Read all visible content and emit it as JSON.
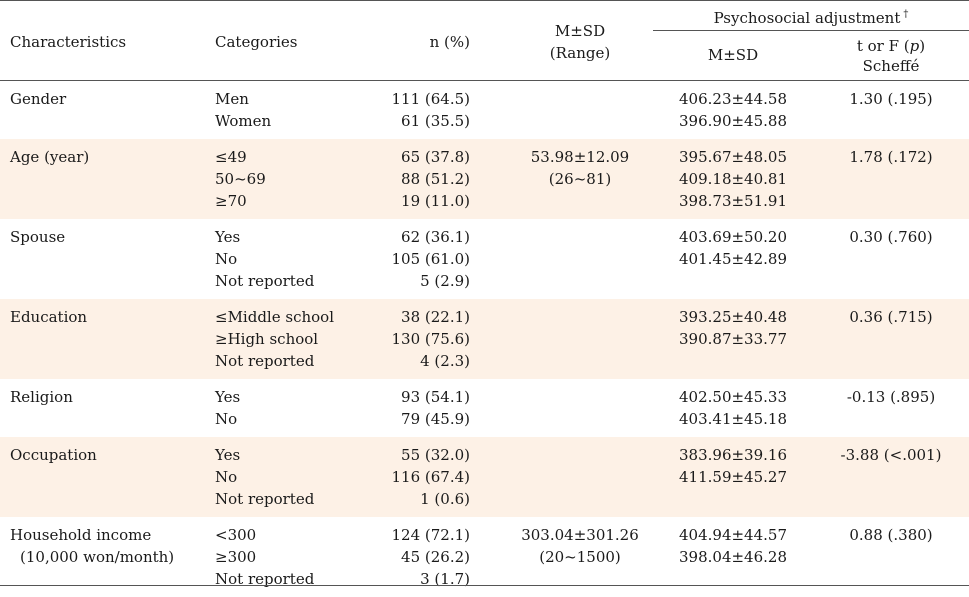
{
  "header": {
    "characteristics": "Characteristics",
    "categories": "Categories",
    "n_pct": "n (%)",
    "msd_range_line1": "M±SD",
    "msd_range_line2": "(Range)",
    "psychosocial": "Psychosocial adjustment",
    "psychosocial_mark": "†",
    "msd": "M±SD",
    "t_or_f_prefix": "t or F (",
    "t_or_f_p": "p",
    "t_or_f_suffix": ")",
    "scheffe": "Scheffé"
  },
  "rows": [
    {
      "characteristic": [
        "Gender"
      ],
      "categories": [
        "Men",
        "Women"
      ],
      "n_pct": [
        "111 (64.5)",
        "61 (35.5)"
      ],
      "msd_range": [],
      "adjustment_msd": [
        "406.23±44.58",
        "396.90±45.88"
      ],
      "stat": "1.30 (.195)",
      "shaded": false
    },
    {
      "characteristic": [
        "Age (year)"
      ],
      "categories": [
        "≤49",
        "50~69",
        "≥70"
      ],
      "n_pct": [
        "65 (37.8)",
        "88 (51.2)",
        "19 (11.0)"
      ],
      "msd_range": [
        "53.98±12.09",
        "(26~81)"
      ],
      "adjustment_msd": [
        "395.67±48.05",
        "409.18±40.81",
        "398.73±51.91"
      ],
      "stat": "1.78 (.172)",
      "shaded": true
    },
    {
      "characteristic": [
        "Spouse"
      ],
      "categories": [
        "Yes",
        "No",
        "Not reported"
      ],
      "n_pct": [
        "62 (36.1)",
        "105 (61.0)",
        "5 (2.9)"
      ],
      "msd_range": [],
      "adjustment_msd": [
        "403.69±50.20",
        "401.45±42.89"
      ],
      "stat": "0.30 (.760)",
      "shaded": false
    },
    {
      "characteristic": [
        "Education"
      ],
      "categories": [
        "≤Middle school",
        "≥High school",
        "Not reported"
      ],
      "n_pct": [
        "38 (22.1)",
        "130 (75.6)",
        "4 (2.3)"
      ],
      "msd_range": [],
      "adjustment_msd": [
        "393.25±40.48",
        "390.87±33.77"
      ],
      "stat": "0.36 (.715)",
      "shaded": true
    },
    {
      "characteristic": [
        "Religion"
      ],
      "categories": [
        "Yes",
        "No"
      ],
      "n_pct": [
        "93 (54.1)",
        "79 (45.9)"
      ],
      "msd_range": [],
      "adjustment_msd": [
        "402.50±45.33",
        "403.41±45.18"
      ],
      "stat": "-0.13 (.895)",
      "shaded": false
    },
    {
      "characteristic": [
        "Occupation"
      ],
      "categories": [
        "Yes",
        "No",
        "Not reported"
      ],
      "n_pct": [
        "55 (32.0)",
        "116 (67.4)",
        "1 (0.6)"
      ],
      "msd_range": [],
      "adjustment_msd": [
        "383.96±39.16",
        "411.59±45.27"
      ],
      "stat": "-3.88 (<.001)",
      "shaded": true
    },
    {
      "characteristic": [
        "Household income",
        "(10,000 won/month)"
      ],
      "categories": [
        "<300",
        "≥300",
        "Not reported"
      ],
      "n_pct": [
        "124 (72.1)",
        "45 (26.2)",
        "3 (1.7)"
      ],
      "msd_range": [
        "303.04±301.26",
        "(20~1500)"
      ],
      "adjustment_msd": [
        "404.94±44.57",
        "398.04±46.28"
      ],
      "stat": "0.88 (.380)",
      "shaded": false
    }
  ]
}
